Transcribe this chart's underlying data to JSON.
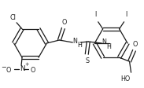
{
  "bg_color": "#ffffff",
  "line_color": "#1a1a1a",
  "line_width": 0.9,
  "font_size": 5.8,
  "fig_width": 1.83,
  "fig_height": 1.12,
  "dpi": 100,
  "xlim": [
    0,
    183
  ],
  "ylim": [
    0,
    112
  ]
}
